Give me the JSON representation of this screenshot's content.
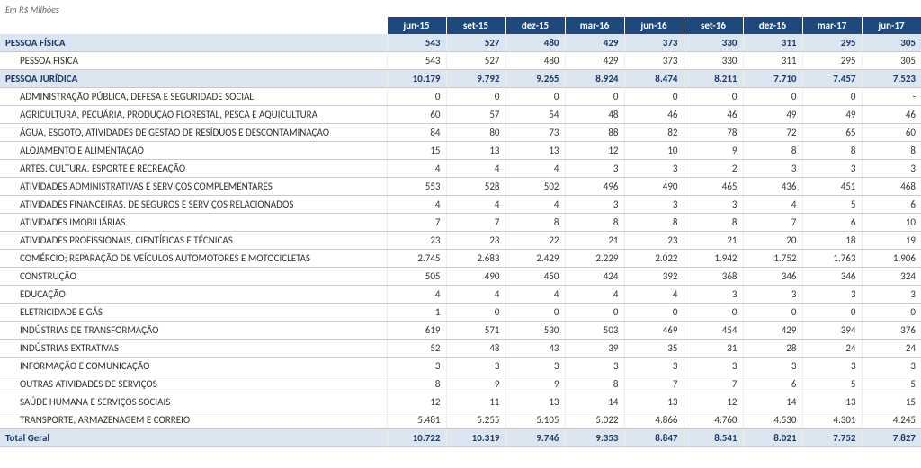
{
  "caption": "Em R$ Milhões",
  "columns": [
    "jun-15",
    "set-15",
    "dez-15",
    "mar-16",
    "jun-16",
    "set-16",
    "dez-16",
    "mar-17",
    "jun-17"
  ],
  "colors": {
    "header_bg": "#1f497d",
    "header_text": "#ffffff",
    "section_bg": "#dce6f1",
    "section_text": "#1f3864",
    "row_border": "#cccccc",
    "body_text": "#333333"
  },
  "rows": [
    {
      "type": "section",
      "label": "PESSOA FÍSICA",
      "values": [
        "543",
        "527",
        "480",
        "429",
        "373",
        "330",
        "311",
        "295",
        "305"
      ]
    },
    {
      "type": "sub-pf",
      "label": "PESSOA FISICA",
      "values": [
        "543",
        "527",
        "480",
        "429",
        "373",
        "330",
        "311",
        "295",
        "305"
      ]
    },
    {
      "type": "section",
      "label": "PESSOA JURÍDICA",
      "values": [
        "10.179",
        "9.792",
        "9.265",
        "8.924",
        "8.474",
        "8.211",
        "7.710",
        "7.457",
        "7.523"
      ]
    },
    {
      "type": "sub",
      "label": "ADMINISTRAÇÃO PÚBLICA, DEFESA E SEGURIDADE SOCIAL",
      "values": [
        "0",
        "0",
        "0",
        "0",
        "0",
        "0",
        "0",
        "0",
        "-"
      ]
    },
    {
      "type": "sub",
      "label": "AGRICULTURA, PECUÁRIA, PRODUÇÃO FLORESTAL, PESCA E AQÜICULTURA",
      "values": [
        "60",
        "57",
        "54",
        "48",
        "46",
        "46",
        "49",
        "49",
        "46"
      ]
    },
    {
      "type": "sub",
      "label": "ÁGUA, ESGOTO, ATIVIDADES DE GESTÃO DE RESÍDUOS E DESCONTAMINAÇÃO",
      "values": [
        "84",
        "80",
        "73",
        "88",
        "82",
        "78",
        "72",
        "65",
        "60"
      ]
    },
    {
      "type": "sub",
      "label": "ALOJAMENTO E ALIMENTAÇÃO",
      "values": [
        "15",
        "13",
        "13",
        "12",
        "10",
        "9",
        "8",
        "8",
        "8"
      ]
    },
    {
      "type": "sub",
      "label": "ARTES, CULTURA, ESPORTE E RECREAÇÃO",
      "values": [
        "4",
        "4",
        "4",
        "3",
        "3",
        "2",
        "3",
        "3",
        "3"
      ]
    },
    {
      "type": "sub",
      "label": "ATIVIDADES ADMINISTRATIVAS E SERVIÇOS COMPLEMENTARES",
      "values": [
        "553",
        "528",
        "502",
        "496",
        "490",
        "465",
        "436",
        "451",
        "468"
      ]
    },
    {
      "type": "sub",
      "label": "ATIVIDADES FINANCEIRAS, DE SEGUROS E SERVIÇOS RELACIONADOS",
      "values": [
        "4",
        "4",
        "4",
        "3",
        "3",
        "3",
        "4",
        "5",
        "6"
      ]
    },
    {
      "type": "sub",
      "label": "ATIVIDADES IMOBILIÁRIAS",
      "values": [
        "7",
        "7",
        "8",
        "8",
        "8",
        "8",
        "7",
        "6",
        "10"
      ]
    },
    {
      "type": "sub",
      "label": "ATIVIDADES PROFISSIONAIS, CIENTÍFICAS E TÉCNICAS",
      "values": [
        "23",
        "23",
        "22",
        "21",
        "23",
        "21",
        "20",
        "18",
        "19"
      ]
    },
    {
      "type": "sub",
      "label": "COMÉRCIO; REPARAÇÃO DE VEÍCULOS AUTOMOTORES E MOTOCICLETAS",
      "values": [
        "2.745",
        "2.683",
        "2.429",
        "2.229",
        "2.022",
        "1.942",
        "1.752",
        "1.763",
        "1.906"
      ]
    },
    {
      "type": "sub",
      "label": "CONSTRUÇÃO",
      "values": [
        "505",
        "490",
        "450",
        "424",
        "392",
        "368",
        "346",
        "346",
        "324"
      ]
    },
    {
      "type": "sub",
      "label": "EDUCAÇÃO",
      "values": [
        "4",
        "4",
        "4",
        "4",
        "4",
        "3",
        "3",
        "3",
        "3"
      ]
    },
    {
      "type": "sub",
      "label": "ELETRICIDADE E GÁS",
      "values": [
        "1",
        "0",
        "0",
        "0",
        "0",
        "0",
        "0",
        "0",
        "0"
      ]
    },
    {
      "type": "sub",
      "label": "INDÚSTRIAS DE TRANSFORMAÇÃO",
      "values": [
        "619",
        "571",
        "530",
        "503",
        "469",
        "454",
        "429",
        "394",
        "376"
      ]
    },
    {
      "type": "sub",
      "label": "INDÚSTRIAS EXTRATIVAS",
      "values": [
        "52",
        "48",
        "43",
        "39",
        "35",
        "31",
        "28",
        "24",
        "24"
      ]
    },
    {
      "type": "sub",
      "label": "INFORMAÇÃO E COMUNICAÇÃO",
      "values": [
        "3",
        "3",
        "3",
        "3",
        "3",
        "3",
        "3",
        "3",
        "3"
      ]
    },
    {
      "type": "sub",
      "label": "OUTRAS ATIVIDADES DE SERVIÇOS",
      "values": [
        "8",
        "9",
        "9",
        "8",
        "7",
        "7",
        "6",
        "5",
        "5"
      ]
    },
    {
      "type": "sub",
      "label": "SAÚDE HUMANA E SERVIÇOS SOCIAIS",
      "values": [
        "12",
        "11",
        "13",
        "14",
        "13",
        "12",
        "14",
        "13",
        "15"
      ]
    },
    {
      "type": "sub",
      "label": "TRANSPORTE, ARMAZENAGEM E CORREIO",
      "values": [
        "5.481",
        "5.255",
        "5.105",
        "5.022",
        "4.866",
        "4.760",
        "4.530",
        "4.301",
        "4.245"
      ]
    },
    {
      "type": "total",
      "label": "Total Geral",
      "values": [
        "10.722",
        "10.319",
        "9.746",
        "9.353",
        "8.847",
        "8.541",
        "8.021",
        "7.752",
        "7.827"
      ]
    }
  ]
}
